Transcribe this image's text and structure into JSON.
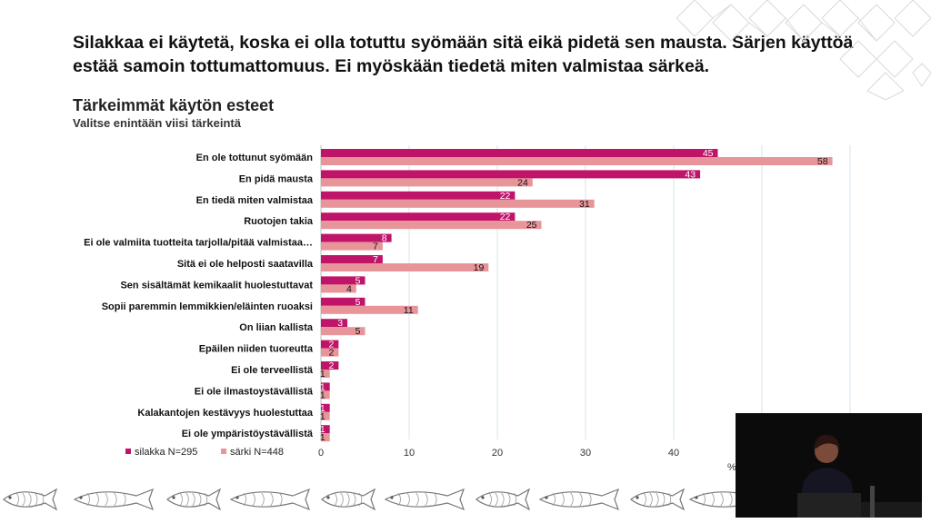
{
  "slide": {
    "headline": "Silakkaa ei käytetä, koska ei olla totuttu syömään sitä eikä pidetä sen mausta. Särjen käyttöä estää samoin tottumattomuus. Ei myöskään tiedetä miten valmistaa särkeä.",
    "title": "Tärkeimmät käytön esteet",
    "subtitle": "Valitse enintään viisi tärkeintä",
    "unit": "%"
  },
  "chart_data": {
    "type": "bar",
    "orientation": "horizontal",
    "title": "Tärkeimmät käytön esteet",
    "subtitle": "Valitse enintään viisi tärkeintä",
    "categories": [
      "En ole tottunut syömään",
      "En pidä mausta",
      "En tiedä miten valmistaa",
      "Ruotojen takia",
      "Ei ole valmiita tuotteita tarjolla/pitää valmistaa…",
      "Sitä ei ole helposti saatavilla",
      "Sen sisältämät kemikaalit huolestuttavat",
      "Sopii paremmin lemmikkien/eläinten ruoaksi",
      "On liian kallista",
      "Epäilen niiden tuoreutta",
      "Ei ole terveellistä",
      "Ei ole ilmastoystävällistä",
      "Kalakantojen kestävyys huolestuttaa",
      "Ei ole ympäristöystävällistä"
    ],
    "series": [
      {
        "name": "silakka N=295",
        "color": "#c0146a",
        "values": [
          45,
          43,
          22,
          22,
          8,
          7,
          5,
          5,
          3,
          2,
          2,
          1,
          1,
          1
        ]
      },
      {
        "name": "särki N=448",
        "color": "#e8959a",
        "values": [
          58,
          24,
          31,
          25,
          7,
          19,
          4,
          11,
          5,
          2,
          1,
          1,
          1,
          1
        ]
      }
    ],
    "xticks": [
      "0",
      "10",
      "20",
      "30",
      "40"
    ],
    "xlim": [
      0,
      60
    ],
    "xlabel": "%",
    "grid": true,
    "legend_position": "bottom-left"
  }
}
